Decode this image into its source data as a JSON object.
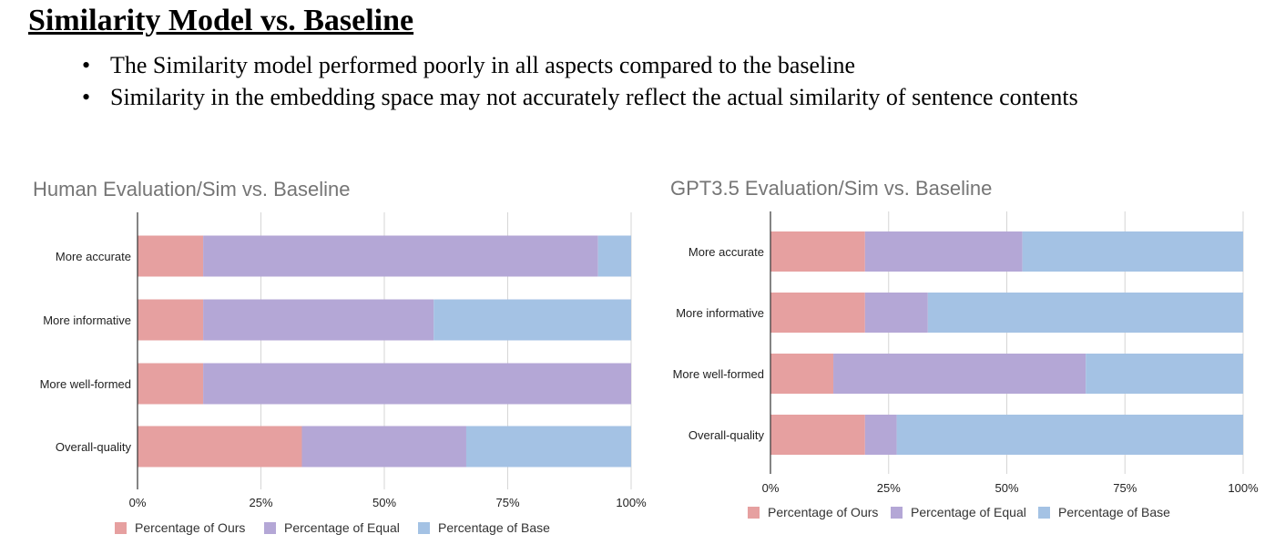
{
  "slide": {
    "title": "Similarity Model vs. Baseline",
    "bullets": [
      "The Similarity model performed poorly in all aspects compared to the baseline",
      "Similarity in the embedding space may not accurately reflect the actual similarity of sentence contents"
    ]
  },
  "chart_data": [
    {
      "type": "bar",
      "orientation": "horizontal",
      "stacked": true,
      "percent": true,
      "title": "Human Evaluation/Sim vs. Baseline",
      "categories": [
        "More accurate",
        "More informative",
        "More well-formed",
        "Overall-quality"
      ],
      "series": [
        {
          "name": "Percentage of Ours",
          "color": "#e6a0a0",
          "values": [
            13.3,
            13.3,
            13.3,
            33.3
          ]
        },
        {
          "name": "Percentage of Equal",
          "color": "#b4a7d6",
          "values": [
            80.0,
            46.7,
            86.7,
            33.3
          ]
        },
        {
          "name": "Percentage of Base",
          "color": "#a4c2e4",
          "values": [
            6.7,
            40.0,
            0.0,
            33.4
          ]
        }
      ],
      "xlim": [
        0,
        100
      ],
      "ticks": [
        "0%",
        "25%",
        "50%",
        "75%",
        "100%"
      ],
      "grid": true,
      "legend": "bottom"
    },
    {
      "type": "bar",
      "orientation": "horizontal",
      "stacked": true,
      "percent": true,
      "title": "GPT3.5 Evaluation/Sim vs. Baseline",
      "categories": [
        "More accurate",
        "More informative",
        "More well-formed",
        "Overall-quality"
      ],
      "series": [
        {
          "name": "Percentage of Ours",
          "color": "#e6a0a0",
          "values": [
            20.0,
            20.0,
            13.3,
            20.0
          ]
        },
        {
          "name": "Percentage of Equal",
          "color": "#b4a7d6",
          "values": [
            33.3,
            13.3,
            53.4,
            6.7
          ]
        },
        {
          "name": "Percentage of Base",
          "color": "#a4c2e4",
          "values": [
            46.7,
            66.7,
            33.3,
            73.3
          ]
        }
      ],
      "xlim": [
        0,
        100
      ],
      "ticks": [
        "0%",
        "25%",
        "50%",
        "75%",
        "100%"
      ],
      "grid": true,
      "legend": "bottom"
    }
  ]
}
